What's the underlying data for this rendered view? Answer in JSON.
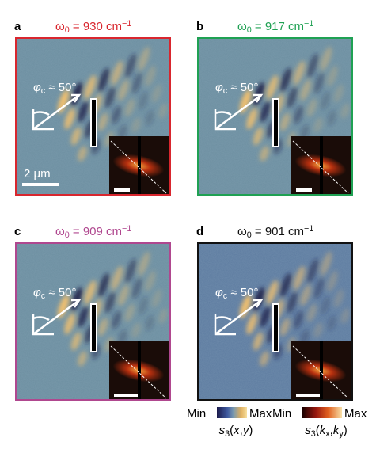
{
  "panels": [
    {
      "label": "a",
      "color": "#d9262e",
      "title": [
        {
          "text": "ω"
        },
        {
          "text": "0",
          "pos": "sub"
        },
        {
          "text": " = 930 cm"
        },
        {
          "text": "−1",
          "pos": "sup"
        }
      ],
      "angle": [
        {
          "text": "φ",
          "pos": "i"
        },
        {
          "text": "c",
          "pos": "sub"
        },
        {
          "text": " ≈ 50°"
        }
      ],
      "scale_bar": "2 μm"
    },
    {
      "label": "b",
      "color": "#1fa153",
      "title": [
        {
          "text": "ω"
        },
        {
          "text": "0",
          "pos": "sub"
        },
        {
          "text": " = 917 cm"
        },
        {
          "text": "−1",
          "pos": "sup"
        }
      ],
      "angle": [
        {
          "text": "φ",
          "pos": "i"
        },
        {
          "text": "c",
          "pos": "sub"
        },
        {
          "text": " ≈ 50°"
        }
      ]
    },
    {
      "label": "c",
      "color": "#b0478f",
      "title": [
        {
          "text": "ω"
        },
        {
          "text": "0",
          "pos": "sub"
        },
        {
          "text": " = 909 cm"
        },
        {
          "text": "−1",
          "pos": "sup"
        }
      ],
      "angle": [
        {
          "text": "φ",
          "pos": "i"
        },
        {
          "text": "c",
          "pos": "sub"
        },
        {
          "text": " ≈ 50°"
        }
      ]
    },
    {
      "label": "d",
      "color": "#111111",
      "title": [
        {
          "text": "ω"
        },
        {
          "text": "0",
          "pos": "sub"
        },
        {
          "text": " = 901 cm"
        },
        {
          "text": "−1",
          "pos": "sup"
        }
      ],
      "angle": [
        {
          "text": "φ",
          "pos": "i"
        },
        {
          "text": "c",
          "pos": "sub"
        },
        {
          "text": " ≈ 50°"
        }
      ]
    }
  ],
  "colorbars": [
    {
      "min": "Min",
      "max": "Max",
      "label": [
        {
          "text": "s",
          "pos": "i"
        },
        {
          "text": "3",
          "pos": "sub"
        },
        {
          "text": "("
        },
        {
          "text": "x",
          "pos": "i"
        },
        {
          "text": ","
        },
        {
          "text": "y",
          "pos": "i"
        },
        {
          "text": ")"
        }
      ]
    },
    {
      "min": "Min",
      "max": "Max",
      "label": [
        {
          "text": "s",
          "pos": "i"
        },
        {
          "text": "3",
          "pos": "sub"
        },
        {
          "text": "("
        },
        {
          "text": "k",
          "pos": "i"
        },
        {
          "text": "x",
          "pos": "sub"
        },
        {
          "text": ","
        },
        {
          "text": "k",
          "pos": "i"
        },
        {
          "text": "y",
          "pos": "sub"
        },
        {
          "text": ")"
        }
      ]
    }
  ]
}
